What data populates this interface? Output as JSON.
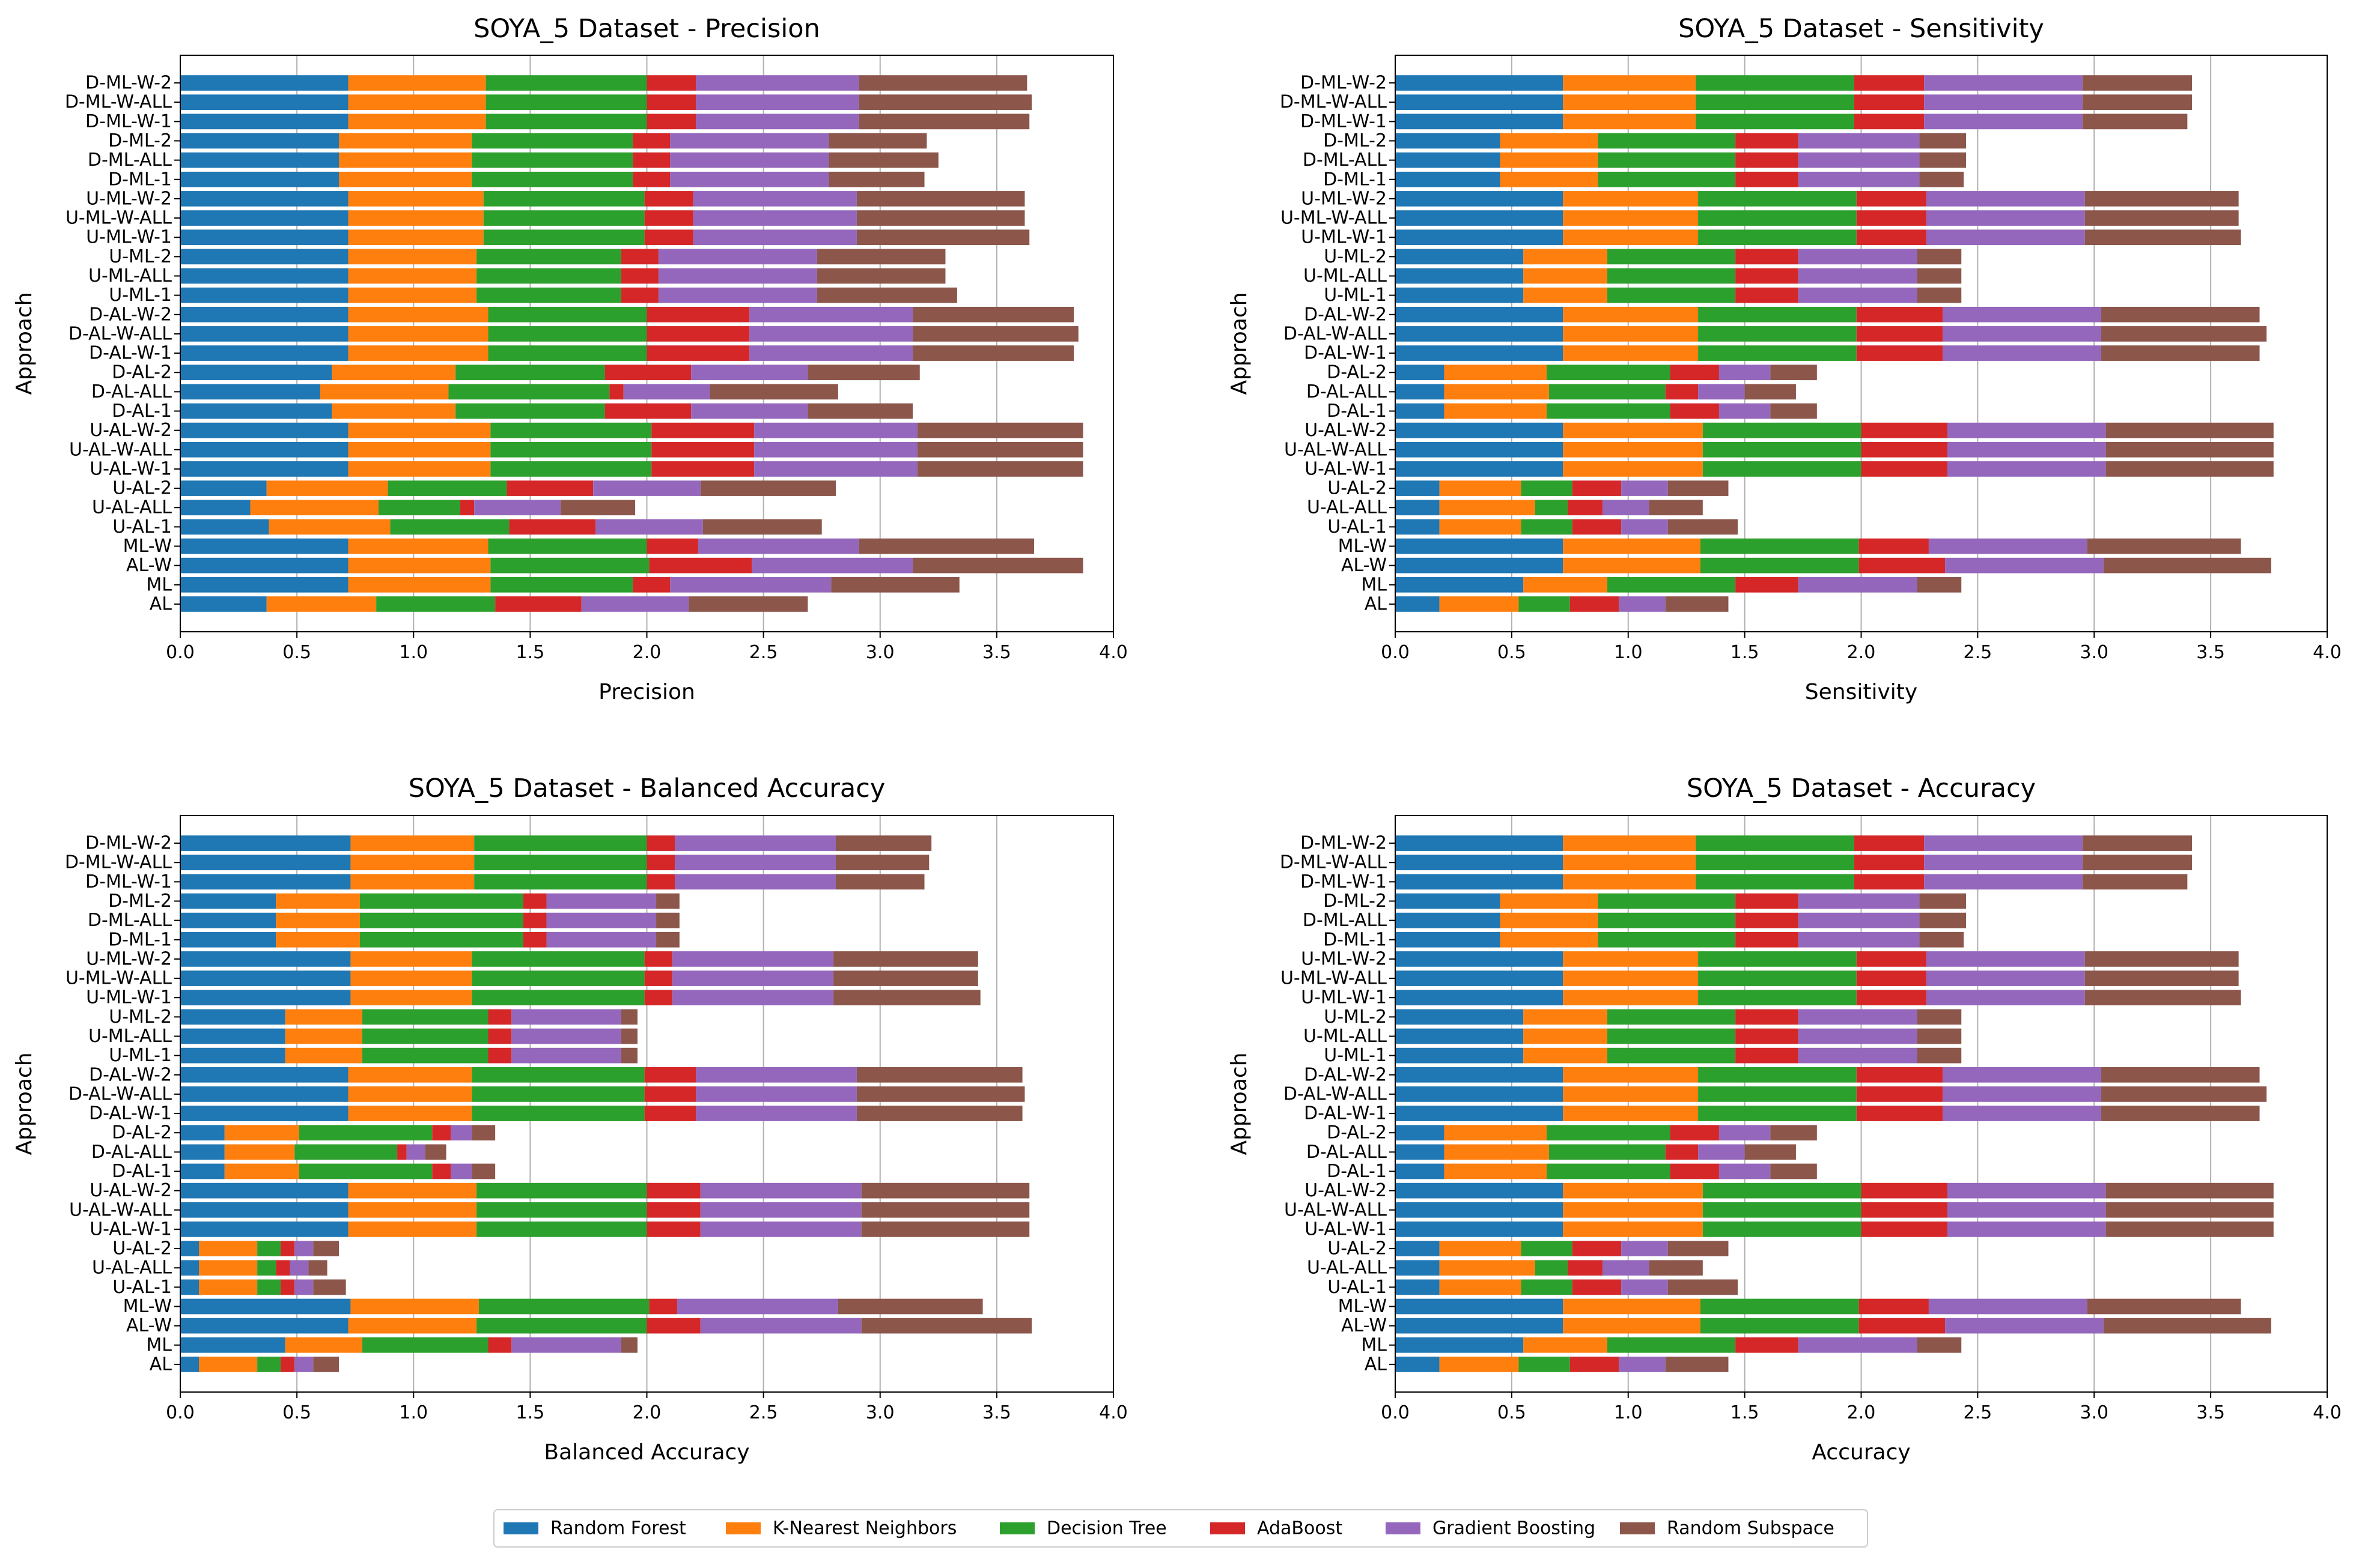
{
  "figure": {
    "legend_location": "bottom-center"
  },
  "legend": [
    {
      "name": "Random Forest",
      "color": "#1f77b4"
    },
    {
      "name": "K-Nearest Neighbors",
      "color": "#ff7f0e"
    },
    {
      "name": "Decision Tree",
      "color": "#2ca02c"
    },
    {
      "name": "AdaBoost",
      "color": "#d62728"
    },
    {
      "name": "Gradient Boosting",
      "color": "#9467bd"
    },
    {
      "name": "Random Subspace",
      "color": "#8c564b"
    }
  ],
  "chart_data": [
    {
      "type": "bar",
      "orientation": "horizontal",
      "stacked": true,
      "title": "SOYA_5 Dataset - Precision",
      "xlabel": "Precision",
      "ylabel": "Approach",
      "xlim": [
        0,
        4.0
      ],
      "xticks": [
        "0.0",
        "0.5",
        "1.0",
        "1.5",
        "2.0",
        "2.5",
        "3.0",
        "3.5",
        "4.0"
      ],
      "grid": "x",
      "categories": [
        "AL",
        "ML",
        "AL-W",
        "ML-W",
        "U-AL-1",
        "U-AL-ALL",
        "U-AL-2",
        "U-AL-W-1",
        "U-AL-W-ALL",
        "U-AL-W-2",
        "D-AL-1",
        "D-AL-ALL",
        "D-AL-2",
        "D-AL-W-1",
        "D-AL-W-ALL",
        "D-AL-W-2",
        "U-ML-1",
        "U-ML-ALL",
        "U-ML-2",
        "U-ML-W-1",
        "U-ML-W-ALL",
        "U-ML-W-2",
        "D-ML-1",
        "D-ML-ALL",
        "D-ML-2",
        "D-ML-W-1",
        "D-ML-W-ALL",
        "D-ML-W-2"
      ],
      "series": [
        {
          "name": "Random Forest",
          "values": [
            0.37,
            0.72,
            0.72,
            0.72,
            0.38,
            0.3,
            0.37,
            0.72,
            0.72,
            0.72,
            0.65,
            0.6,
            0.65,
            0.72,
            0.72,
            0.72,
            0.72,
            0.72,
            0.72,
            0.72,
            0.72,
            0.72,
            0.68,
            0.68,
            0.68,
            0.72,
            0.72,
            0.72
          ]
        },
        {
          "name": "K-Nearest Neighbors",
          "values": [
            0.47,
            0.61,
            0.61,
            0.6,
            0.52,
            0.55,
            0.52,
            0.61,
            0.61,
            0.61,
            0.53,
            0.55,
            0.53,
            0.6,
            0.6,
            0.6,
            0.55,
            0.55,
            0.55,
            0.58,
            0.58,
            0.58,
            0.57,
            0.57,
            0.57,
            0.59,
            0.59,
            0.59
          ]
        },
        {
          "name": "Decision Tree",
          "values": [
            0.51,
            0.61,
            0.68,
            0.68,
            0.51,
            0.35,
            0.51,
            0.69,
            0.69,
            0.69,
            0.64,
            0.69,
            0.64,
            0.68,
            0.68,
            0.68,
            0.62,
            0.62,
            0.62,
            0.69,
            0.69,
            0.69,
            0.69,
            0.69,
            0.69,
            0.69,
            0.69,
            0.69
          ]
        },
        {
          "name": "AdaBoost",
          "values": [
            0.37,
            0.16,
            0.44,
            0.22,
            0.37,
            0.06,
            0.37,
            0.44,
            0.44,
            0.44,
            0.37,
            0.06,
            0.37,
            0.44,
            0.44,
            0.44,
            0.16,
            0.16,
            0.16,
            0.21,
            0.21,
            0.21,
            0.16,
            0.16,
            0.16,
            0.21,
            0.21,
            0.21
          ]
        },
        {
          "name": "Gradient Boosting",
          "values": [
            0.46,
            0.69,
            0.69,
            0.69,
            0.46,
            0.37,
            0.46,
            0.7,
            0.7,
            0.7,
            0.5,
            0.37,
            0.5,
            0.7,
            0.7,
            0.7,
            0.68,
            0.68,
            0.68,
            0.7,
            0.7,
            0.7,
            0.68,
            0.68,
            0.68,
            0.7,
            0.7,
            0.7
          ]
        },
        {
          "name": "Random Subspace",
          "values": [
            0.51,
            0.55,
            0.73,
            0.75,
            0.51,
            0.32,
            0.58,
            0.71,
            0.71,
            0.71,
            0.45,
            0.55,
            0.48,
            0.69,
            0.71,
            0.69,
            0.6,
            0.55,
            0.55,
            0.74,
            0.72,
            0.72,
            0.41,
            0.47,
            0.42,
            0.73,
            0.74,
            0.72
          ]
        }
      ]
    },
    {
      "type": "bar",
      "orientation": "horizontal",
      "stacked": true,
      "title": "SOYA_5 Dataset - Sensitivity",
      "xlabel": "Sensitivity",
      "ylabel": "Approach",
      "xlim": [
        0,
        4.0
      ],
      "xticks": [
        "0.0",
        "0.5",
        "1.0",
        "1.5",
        "2.0",
        "2.5",
        "3.0",
        "3.5",
        "4.0"
      ],
      "grid": "x",
      "categories": [
        "AL",
        "ML",
        "AL-W",
        "ML-W",
        "U-AL-1",
        "U-AL-ALL",
        "U-AL-2",
        "U-AL-W-1",
        "U-AL-W-ALL",
        "U-AL-W-2",
        "D-AL-1",
        "D-AL-ALL",
        "D-AL-2",
        "D-AL-W-1",
        "D-AL-W-ALL",
        "D-AL-W-2",
        "U-ML-1",
        "U-ML-ALL",
        "U-ML-2",
        "U-ML-W-1",
        "U-ML-W-ALL",
        "U-ML-W-2",
        "D-ML-1",
        "D-ML-ALL",
        "D-ML-2",
        "D-ML-W-1",
        "D-ML-W-ALL",
        "D-ML-W-2"
      ],
      "series": [
        {
          "name": "Random Forest",
          "values": [
            0.19,
            0.55,
            0.72,
            0.72,
            0.19,
            0.19,
            0.19,
            0.72,
            0.72,
            0.72,
            0.21,
            0.21,
            0.21,
            0.72,
            0.72,
            0.72,
            0.55,
            0.55,
            0.55,
            0.72,
            0.72,
            0.72,
            0.45,
            0.45,
            0.45,
            0.72,
            0.72,
            0.72
          ]
        },
        {
          "name": "K-Nearest Neighbors",
          "values": [
            0.34,
            0.36,
            0.59,
            0.59,
            0.35,
            0.41,
            0.35,
            0.6,
            0.6,
            0.6,
            0.44,
            0.45,
            0.44,
            0.58,
            0.58,
            0.58,
            0.36,
            0.36,
            0.36,
            0.58,
            0.58,
            0.58,
            0.42,
            0.42,
            0.42,
            0.57,
            0.57,
            0.57
          ]
        },
        {
          "name": "Decision Tree",
          "values": [
            0.22,
            0.55,
            0.68,
            0.68,
            0.22,
            0.14,
            0.22,
            0.68,
            0.68,
            0.68,
            0.53,
            0.5,
            0.53,
            0.68,
            0.68,
            0.68,
            0.55,
            0.55,
            0.55,
            0.68,
            0.68,
            0.68,
            0.59,
            0.59,
            0.59,
            0.68,
            0.68,
            0.68
          ]
        },
        {
          "name": "AdaBoost",
          "values": [
            0.21,
            0.27,
            0.37,
            0.3,
            0.21,
            0.15,
            0.21,
            0.37,
            0.37,
            0.37,
            0.21,
            0.14,
            0.21,
            0.37,
            0.37,
            0.37,
            0.27,
            0.27,
            0.27,
            0.3,
            0.3,
            0.3,
            0.27,
            0.27,
            0.27,
            0.3,
            0.3,
            0.3
          ]
        },
        {
          "name": "Gradient Boosting",
          "values": [
            0.2,
            0.51,
            0.68,
            0.68,
            0.2,
            0.2,
            0.2,
            0.68,
            0.68,
            0.68,
            0.22,
            0.2,
            0.22,
            0.68,
            0.68,
            0.68,
            0.51,
            0.51,
            0.51,
            0.68,
            0.68,
            0.68,
            0.52,
            0.52,
            0.52,
            0.68,
            0.68,
            0.68
          ]
        },
        {
          "name": "Random Subspace",
          "values": [
            0.27,
            0.19,
            0.72,
            0.66,
            0.3,
            0.23,
            0.26,
            0.72,
            0.72,
            0.72,
            0.2,
            0.22,
            0.2,
            0.68,
            0.71,
            0.68,
            0.19,
            0.19,
            0.19,
            0.67,
            0.66,
            0.66,
            0.19,
            0.2,
            0.2,
            0.45,
            0.47,
            0.47
          ]
        }
      ]
    },
    {
      "type": "bar",
      "orientation": "horizontal",
      "stacked": true,
      "title": "SOYA_5 Dataset - Balanced Accuracy",
      "xlabel": "Balanced Accuracy",
      "ylabel": "Approach",
      "xlim": [
        0,
        4.0
      ],
      "xticks": [
        "0.0",
        "0.5",
        "1.0",
        "1.5",
        "2.0",
        "2.5",
        "3.0",
        "3.5",
        "4.0"
      ],
      "grid": "x",
      "categories": [
        "AL",
        "ML",
        "AL-W",
        "ML-W",
        "U-AL-1",
        "U-AL-ALL",
        "U-AL-2",
        "U-AL-W-1",
        "U-AL-W-ALL",
        "U-AL-W-2",
        "D-AL-1",
        "D-AL-ALL",
        "D-AL-2",
        "D-AL-W-1",
        "D-AL-W-ALL",
        "D-AL-W-2",
        "U-ML-1",
        "U-ML-ALL",
        "U-ML-2",
        "U-ML-W-1",
        "U-ML-W-ALL",
        "U-ML-W-2",
        "D-ML-1",
        "D-ML-ALL",
        "D-ML-2",
        "D-ML-W-1",
        "D-ML-W-ALL",
        "D-ML-W-2"
      ],
      "series": [
        {
          "name": "Random Forest",
          "values": [
            0.08,
            0.45,
            0.72,
            0.73,
            0.08,
            0.08,
            0.08,
            0.72,
            0.72,
            0.72,
            0.19,
            0.19,
            0.19,
            0.72,
            0.72,
            0.72,
            0.45,
            0.45,
            0.45,
            0.73,
            0.73,
            0.73,
            0.41,
            0.41,
            0.41,
            0.73,
            0.73,
            0.73
          ]
        },
        {
          "name": "K-Nearest Neighbors",
          "values": [
            0.25,
            0.33,
            0.55,
            0.55,
            0.25,
            0.25,
            0.25,
            0.55,
            0.55,
            0.55,
            0.32,
            0.3,
            0.32,
            0.53,
            0.53,
            0.53,
            0.33,
            0.33,
            0.33,
            0.52,
            0.52,
            0.52,
            0.36,
            0.36,
            0.36,
            0.53,
            0.53,
            0.53
          ]
        },
        {
          "name": "Decision Tree",
          "values": [
            0.1,
            0.54,
            0.73,
            0.73,
            0.1,
            0.08,
            0.1,
            0.73,
            0.73,
            0.73,
            0.57,
            0.44,
            0.57,
            0.74,
            0.74,
            0.74,
            0.54,
            0.54,
            0.54,
            0.74,
            0.74,
            0.74,
            0.7,
            0.7,
            0.7,
            0.74,
            0.74,
            0.74
          ]
        },
        {
          "name": "AdaBoost",
          "values": [
            0.06,
            0.1,
            0.23,
            0.12,
            0.06,
            0.06,
            0.06,
            0.23,
            0.23,
            0.23,
            0.08,
            0.04,
            0.08,
            0.22,
            0.22,
            0.22,
            0.1,
            0.1,
            0.1,
            0.12,
            0.12,
            0.12,
            0.1,
            0.1,
            0.1,
            0.12,
            0.12,
            0.12
          ]
        },
        {
          "name": "Gradient Boosting",
          "values": [
            0.08,
            0.47,
            0.69,
            0.69,
            0.08,
            0.08,
            0.08,
            0.69,
            0.69,
            0.69,
            0.09,
            0.08,
            0.09,
            0.69,
            0.69,
            0.69,
            0.47,
            0.47,
            0.47,
            0.69,
            0.69,
            0.69,
            0.47,
            0.47,
            0.47,
            0.69,
            0.69,
            0.69
          ]
        },
        {
          "name": "Random Subspace",
          "values": [
            0.11,
            0.07,
            0.73,
            0.62,
            0.14,
            0.08,
            0.11,
            0.72,
            0.72,
            0.72,
            0.1,
            0.09,
            0.1,
            0.71,
            0.72,
            0.71,
            0.07,
            0.07,
            0.07,
            0.63,
            0.62,
            0.62,
            0.1,
            0.1,
            0.1,
            0.38,
            0.4,
            0.41
          ]
        }
      ]
    },
    {
      "type": "bar",
      "orientation": "horizontal",
      "stacked": true,
      "title": "SOYA_5 Dataset - Accuracy",
      "xlabel": "Accuracy",
      "ylabel": "Approach",
      "xlim": [
        0,
        4.0
      ],
      "xticks": [
        "0.0",
        "0.5",
        "1.0",
        "1.5",
        "2.0",
        "2.5",
        "3.0",
        "3.5",
        "4.0"
      ],
      "grid": "x",
      "categories": [
        "AL",
        "ML",
        "AL-W",
        "ML-W",
        "U-AL-1",
        "U-AL-ALL",
        "U-AL-2",
        "U-AL-W-1",
        "U-AL-W-ALL",
        "U-AL-W-2",
        "D-AL-1",
        "D-AL-ALL",
        "D-AL-2",
        "D-AL-W-1",
        "D-AL-W-ALL",
        "D-AL-W-2",
        "U-ML-1",
        "U-ML-ALL",
        "U-ML-2",
        "U-ML-W-1",
        "U-ML-W-ALL",
        "U-ML-W-2",
        "D-ML-1",
        "D-ML-ALL",
        "D-ML-2",
        "D-ML-W-1",
        "D-ML-W-ALL",
        "D-ML-W-2"
      ],
      "series": [
        {
          "name": "Random Forest",
          "values": [
            0.19,
            0.55,
            0.72,
            0.72,
            0.19,
            0.19,
            0.19,
            0.72,
            0.72,
            0.72,
            0.21,
            0.21,
            0.21,
            0.72,
            0.72,
            0.72,
            0.55,
            0.55,
            0.55,
            0.72,
            0.72,
            0.72,
            0.45,
            0.45,
            0.45,
            0.72,
            0.72,
            0.72
          ]
        },
        {
          "name": "K-Nearest Neighbors",
          "values": [
            0.34,
            0.36,
            0.59,
            0.59,
            0.35,
            0.41,
            0.35,
            0.6,
            0.6,
            0.6,
            0.44,
            0.45,
            0.44,
            0.58,
            0.58,
            0.58,
            0.36,
            0.36,
            0.36,
            0.58,
            0.58,
            0.58,
            0.42,
            0.42,
            0.42,
            0.57,
            0.57,
            0.57
          ]
        },
        {
          "name": "Decision Tree",
          "values": [
            0.22,
            0.55,
            0.68,
            0.68,
            0.22,
            0.14,
            0.22,
            0.68,
            0.68,
            0.68,
            0.53,
            0.5,
            0.53,
            0.68,
            0.68,
            0.68,
            0.55,
            0.55,
            0.55,
            0.68,
            0.68,
            0.68,
            0.59,
            0.59,
            0.59,
            0.68,
            0.68,
            0.68
          ]
        },
        {
          "name": "AdaBoost",
          "values": [
            0.21,
            0.27,
            0.37,
            0.3,
            0.21,
            0.15,
            0.21,
            0.37,
            0.37,
            0.37,
            0.21,
            0.14,
            0.21,
            0.37,
            0.37,
            0.37,
            0.27,
            0.27,
            0.27,
            0.3,
            0.3,
            0.3,
            0.27,
            0.27,
            0.27,
            0.3,
            0.3,
            0.3
          ]
        },
        {
          "name": "Gradient Boosting",
          "values": [
            0.2,
            0.51,
            0.68,
            0.68,
            0.2,
            0.2,
            0.2,
            0.68,
            0.68,
            0.68,
            0.22,
            0.2,
            0.22,
            0.68,
            0.68,
            0.68,
            0.51,
            0.51,
            0.51,
            0.68,
            0.68,
            0.68,
            0.52,
            0.52,
            0.52,
            0.68,
            0.68,
            0.68
          ]
        },
        {
          "name": "Random Subspace",
          "values": [
            0.27,
            0.19,
            0.72,
            0.66,
            0.3,
            0.23,
            0.26,
            0.72,
            0.72,
            0.72,
            0.2,
            0.22,
            0.2,
            0.68,
            0.71,
            0.68,
            0.19,
            0.19,
            0.19,
            0.67,
            0.66,
            0.66,
            0.19,
            0.2,
            0.2,
            0.45,
            0.47,
            0.47
          ]
        }
      ]
    }
  ]
}
